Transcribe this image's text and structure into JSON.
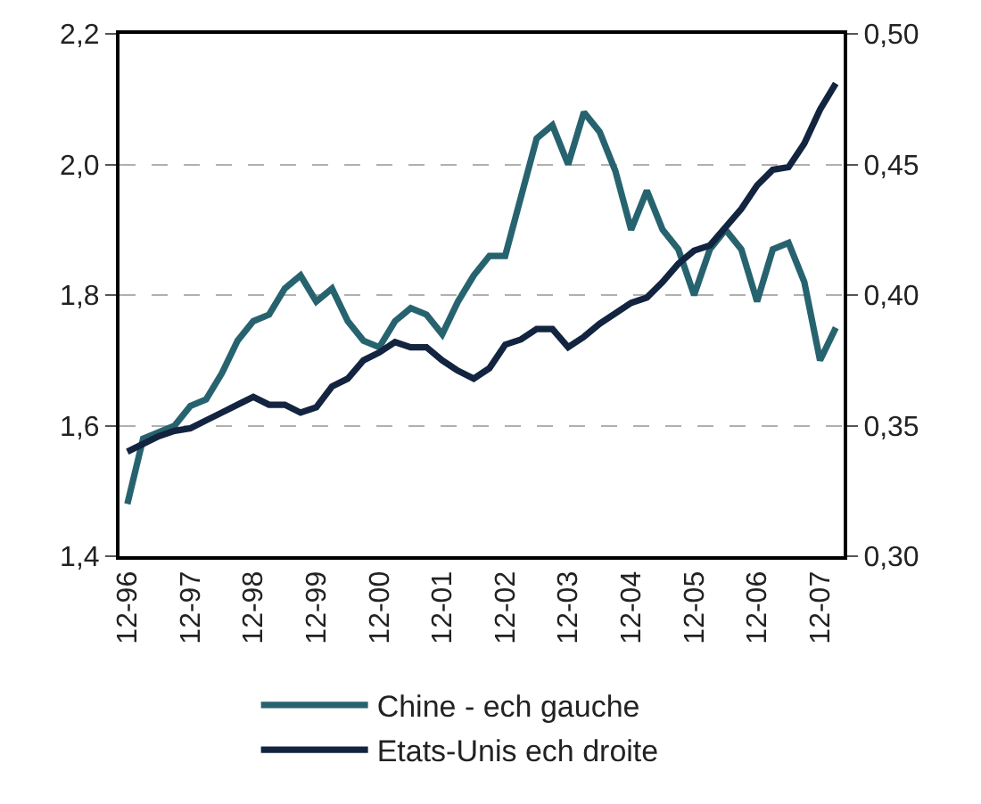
{
  "chart_data": {
    "type": "line",
    "categories": [
      "12-96",
      null,
      null,
      null,
      "12-97",
      null,
      null,
      null,
      "12-98",
      null,
      null,
      null,
      "12-99",
      null,
      null,
      null,
      "12-00",
      null,
      null,
      null,
      "12-01",
      null,
      null,
      null,
      "12-02",
      null,
      null,
      null,
      "12-03",
      null,
      null,
      null,
      "12-04",
      null,
      null,
      null,
      "12-05",
      null,
      null,
      null,
      "12-06",
      null,
      null,
      null,
      "12-07",
      null
    ],
    "series": [
      {
        "name": "Chine - ech gauche",
        "color": "#27636f",
        "values": [
          1.48,
          1.58,
          1.59,
          1.6,
          1.63,
          1.64,
          1.68,
          1.73,
          1.76,
          1.77,
          1.81,
          1.83,
          1.79,
          1.81,
          1.76,
          1.73,
          1.72,
          1.76,
          1.78,
          1.77,
          1.74,
          1.79,
          1.83,
          1.86,
          1.86,
          1.95,
          2.04,
          2.06,
          2.0,
          2.08,
          2.05,
          1.99,
          1.9,
          1.96,
          1.9,
          1.87,
          1.8,
          1.87,
          1.9,
          1.87,
          1.79,
          1.87,
          1.88,
          1.82,
          1.7,
          1.75
        ]
      },
      {
        "name": "Etats-Unis ech droite",
        "color": "#12243f",
        "axis": "y2",
        "values": [
          0.34,
          0.343,
          0.346,
          0.348,
          0.349,
          0.352,
          0.355,
          0.358,
          0.361,
          0.358,
          0.358,
          0.355,
          0.357,
          0.365,
          0.368,
          0.375,
          0.378,
          0.382,
          0.38,
          0.38,
          0.375,
          0.371,
          0.368,
          0.372,
          0.381,
          0.383,
          0.387,
          0.387,
          0.38,
          0.384,
          0.389,
          0.393,
          0.397,
          0.399,
          0.405,
          0.412,
          0.417,
          0.419,
          0.426,
          0.433,
          0.442,
          0.448,
          0.449,
          0.458,
          0.471,
          0.481
        ]
      }
    ],
    "ylim": [
      1.4,
      2.2
    ],
    "yticks": [
      {
        "value": 1.4,
        "label": "1,4"
      },
      {
        "value": 1.6,
        "label": "1,6"
      },
      {
        "value": 1.8,
        "label": "1,8"
      },
      {
        "value": 2.0,
        "label": "2,0"
      },
      {
        "value": 2.2,
        "label": "2,2"
      }
    ],
    "y2lim": [
      0.3,
      0.5
    ],
    "y2ticks": [
      {
        "value": 0.3,
        "label": "0,30"
      },
      {
        "value": 0.35,
        "label": "0,35"
      },
      {
        "value": 0.4,
        "label": "0,40"
      },
      {
        "value": 0.45,
        "label": "0,45"
      },
      {
        "value": 0.5,
        "label": "0,50"
      }
    ],
    "grid": "y",
    "legend": "bottom",
    "line_style": "solid"
  }
}
